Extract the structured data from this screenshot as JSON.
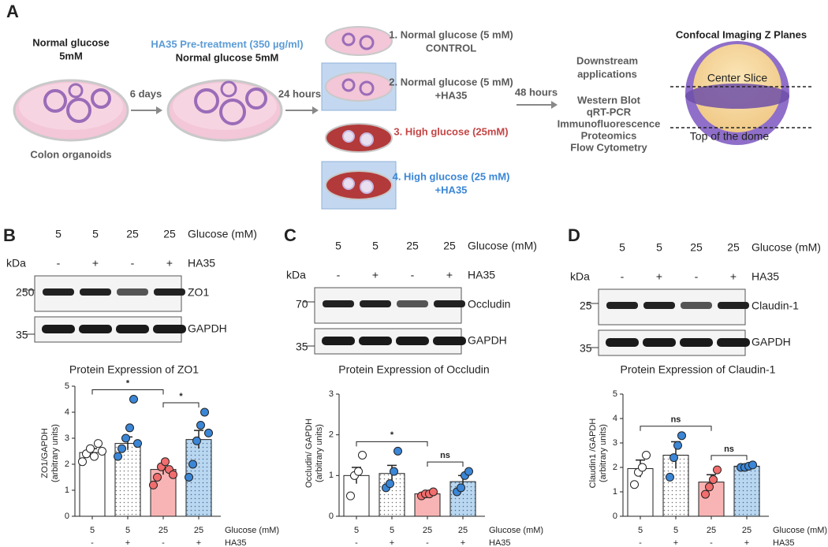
{
  "panel_labels": [
    "A",
    "B",
    "C",
    "D"
  ],
  "panel_a": {
    "step0": [
      "Normal glucose",
      "5mM"
    ],
    "step0_caption": "Colon organoids",
    "arrow1": "6 days",
    "step1": [
      "HA35 Pre-treatment (350 µg/ml)",
      "Normal glucose 5mM"
    ],
    "arrow2": "24 hours",
    "conditions": [
      [
        "1.  Normal glucose (5 mM)",
        "CONTROL"
      ],
      [
        "2. Normal glucose (5 mM)",
        "+HA35"
      ],
      [
        "3. High glucose (25mM)"
      ],
      [
        "4. High glucose (25 mM)",
        "+HA35"
      ]
    ],
    "arrow3": "48 hours",
    "applications_title": [
      "Downstream",
      "applications"
    ],
    "applications": [
      "Western Blot",
      "qRT-PCR",
      "Immunofluorescence",
      "Proteomics",
      "Flow Cytometry"
    ],
    "confocal": {
      "title": "Confocal Imaging Z Planes",
      "center": "Center Slice",
      "top": "Top of the dome"
    }
  },
  "blots": [
    {
      "glucose": [
        "5",
        "5",
        "25",
        "25"
      ],
      "glucose_label": "Glucose (mM)",
      "kda": "kDa",
      "ha35": [
        "-",
        "+",
        "-",
        "+"
      ],
      "ha35_label": "HA35",
      "protein": "ZO1",
      "protein_kda": "250",
      "gapdh": "GAPDH",
      "gapdh_kda": "35"
    },
    {
      "glucose": [
        "5",
        "5",
        "25",
        "25"
      ],
      "glucose_label": "Glucose (mM)",
      "kda": "kDa",
      "ha35": [
        "-",
        "+",
        "-",
        "+"
      ],
      "ha35_label": "HA35",
      "protein": "Occludin",
      "protein_kda": "70",
      "gapdh": "GAPDH",
      "gapdh_kda": "35"
    },
    {
      "glucose": [
        "5",
        "5",
        "25",
        "25"
      ],
      "glucose_label": "Glucose (mM)",
      "kda": "kDa",
      "ha35": [
        "-",
        "+",
        "-",
        "+"
      ],
      "ha35_label": "HA35",
      "protein": "Claudin-1",
      "protein_kda": "25",
      "gapdh": "GAPDH",
      "gapdh_kda": "35"
    }
  ],
  "chart_data": [
    {
      "type": "bar",
      "title": "Protein Expression of ZO1",
      "ylabel": [
        "ZO1/GAPDH",
        "(arbitrary units)"
      ],
      "categories": [
        "5",
        "5",
        "25",
        "25"
      ],
      "category_label": "Glucose (mM)",
      "ha35": [
        "-",
        "+",
        "-",
        "+"
      ],
      "ha35_label": "HA35",
      "values": [
        2.45,
        2.8,
        1.8,
        2.95
      ],
      "errors": [
        0.15,
        0.25,
        0.2,
        0.35
      ],
      "points": [
        [
          2.1,
          2.4,
          2.6,
          2.3,
          2.8,
          2.5
        ],
        [
          2.3,
          2.6,
          3.0,
          3.4,
          4.5,
          2.8
        ],
        [
          1.2,
          1.5,
          1.9,
          2.1,
          1.8,
          1.6
        ],
        [
          1.5,
          2.0,
          2.9,
          3.5,
          4.0,
          3.2
        ]
      ],
      "ylim": [
        0,
        5
      ],
      "yticks": [
        0,
        1,
        2,
        3,
        4,
        5
      ],
      "colors": [
        "#ffffff",
        "#ffffff",
        "#f8b4b4",
        "#b9d7f0"
      ],
      "point_colors": [
        "#ffffff",
        "#3b86d6",
        "#f26d6d",
        "#3b86d6"
      ],
      "patterns": [
        "none",
        "dots",
        "none",
        "dots"
      ],
      "significance": [
        {
          "from": 0,
          "to": 2,
          "label": "*"
        },
        {
          "from": 2,
          "to": 3,
          "label": "*"
        }
      ]
    },
    {
      "type": "bar",
      "title": "Protein Expression of Occludin",
      "ylabel": [
        "Occludin/ GAPDH",
        "(arbitrary units)"
      ],
      "categories": [
        "5",
        "5",
        "25",
        "25"
      ],
      "category_label": "Glucose (mM)",
      "ha35": [
        "-",
        "+",
        "-",
        "+"
      ],
      "ha35_label": "HA35",
      "values": [
        1.0,
        1.05,
        0.55,
        0.85
      ],
      "errors": [
        0.2,
        0.2,
        0.03,
        0.15
      ],
      "points": [
        [
          0.5,
          1.0,
          1.1,
          1.5
        ],
        [
          0.7,
          0.8,
          1.1,
          1.6
        ],
        [
          0.5,
          0.55,
          0.55,
          0.6
        ],
        [
          0.6,
          0.7,
          1.0,
          1.1
        ]
      ],
      "ylim": [
        0,
        3
      ],
      "yticks": [
        0,
        1,
        2,
        3
      ],
      "colors": [
        "#ffffff",
        "#ffffff",
        "#f8b4b4",
        "#b9d7f0"
      ],
      "point_colors": [
        "#ffffff",
        "#3b86d6",
        "#f26d6d",
        "#3b86d6"
      ],
      "patterns": [
        "none",
        "dots",
        "none",
        "dots"
      ],
      "significance": [
        {
          "from": 0,
          "to": 2,
          "label": "*"
        },
        {
          "from": 2,
          "to": 3,
          "label": "ns"
        }
      ]
    },
    {
      "type": "bar",
      "title": "Protein Expression of Claudin-1",
      "ylabel": [
        "Claudin1 /GAPDH",
        "(arbitrary units)"
      ],
      "categories": [
        "5",
        "5",
        "25",
        "25"
      ],
      "category_label": "Glucose (mM)",
      "ha35": [
        "-",
        "+",
        "-",
        "+"
      ],
      "ha35_label": "HA35",
      "values": [
        1.95,
        2.5,
        1.4,
        2.05
      ],
      "errors": [
        0.35,
        0.55,
        0.3,
        0.05
      ],
      "points": [
        [
          1.3,
          1.8,
          2.0,
          2.5
        ],
        [
          1.6,
          2.4,
          2.9,
          3.3
        ],
        [
          0.9,
          1.2,
          1.5,
          1.9
        ],
        [
          2.0,
          2.0,
          2.05,
          2.1
        ]
      ],
      "ylim": [
        0,
        5
      ],
      "yticks": [
        0,
        1,
        2,
        3,
        4,
        5
      ],
      "colors": [
        "#ffffff",
        "#ffffff",
        "#f8b4b4",
        "#b9d7f0"
      ],
      "point_colors": [
        "#ffffff",
        "#3b86d6",
        "#f26d6d",
        "#3b86d6"
      ],
      "patterns": [
        "none",
        "dots",
        "none",
        "dots"
      ],
      "significance": [
        {
          "from": 0,
          "to": 2,
          "label": "ns"
        },
        {
          "from": 2,
          "to": 3,
          "label": "ns"
        }
      ]
    }
  ]
}
